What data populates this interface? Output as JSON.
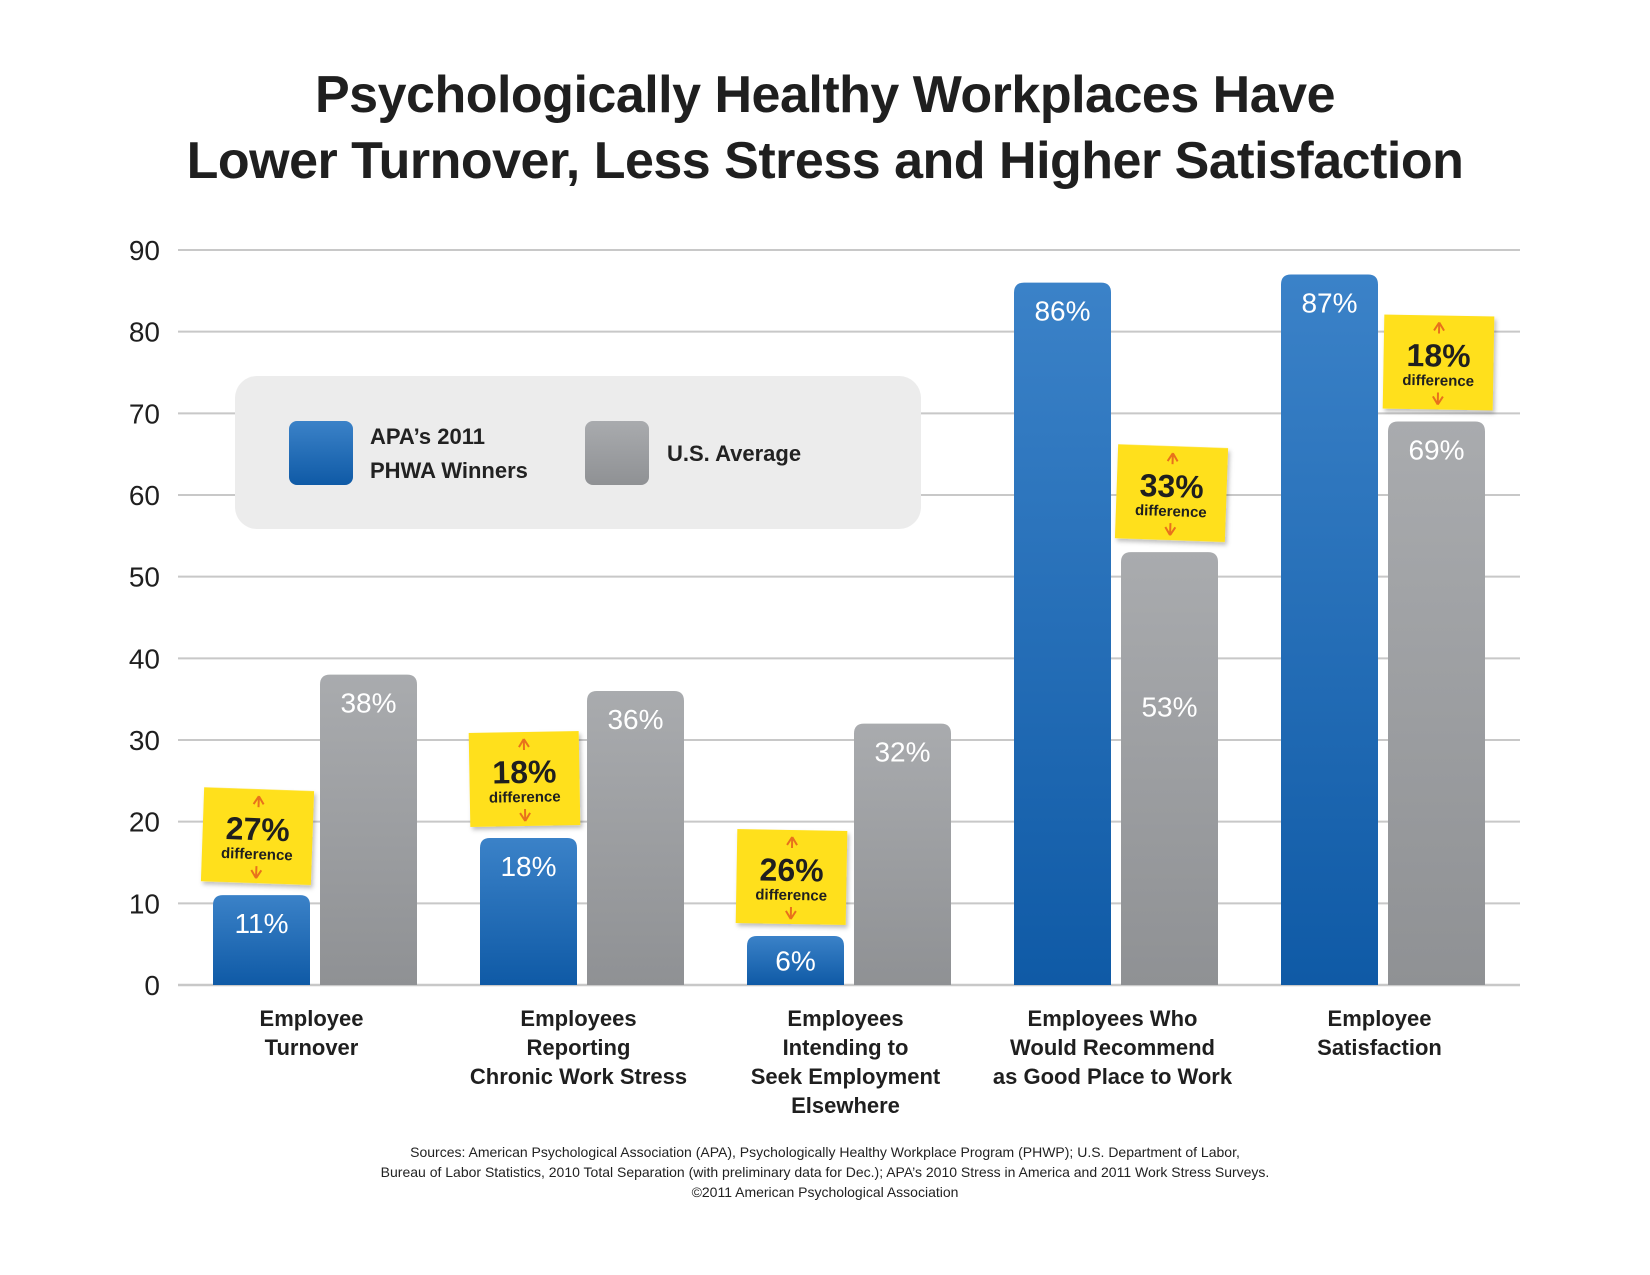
{
  "title_lines": [
    "Psychologically Healthy Workplaces Have",
    "Lower Turnover, Less Stress and Higher Satisfaction"
  ],
  "sources": {
    "line1": "Sources: American Psychological Association (APA), Psychologically Healthy Workplace Program (PHWP); U.S. Department of Labor,",
    "line2": "Bureau of Labor Statistics, 2010 Total Separation (with preliminary data for Dec.); APA’s 2010 Stress in America and 2011 Work Stress Surveys.",
    "line3": "©2011 American Psychological Association"
  },
  "colors": {
    "apa_bar": "#1f6bb5",
    "us_bar": "#a3a5a8",
    "note": "#ffe01a",
    "arrow": "#e8711c",
    "grid": "#c8c8c8",
    "legend_box": "#ececec"
  },
  "chart_data": {
    "type": "bar",
    "title": "Psychologically Healthy Workplaces Have Lower Turnover, Less Stress and Higher Satisfaction",
    "xlabel": "",
    "ylabel": "",
    "ylim": [
      0,
      90
    ],
    "yticks": [
      0,
      10,
      20,
      30,
      40,
      50,
      60,
      70,
      80,
      90
    ],
    "grid": true,
    "legend_position": "top-left",
    "categories": [
      [
        "Employee",
        "Turnover"
      ],
      [
        "Employees",
        "Reporting",
        "Chronic Work Stress"
      ],
      [
        "Employees",
        "Intending to",
        "Seek Employment",
        "Elsewhere"
      ],
      [
        "Employees Who",
        "Would Recommend",
        "as Good Place to Work"
      ],
      [
        "Employee",
        "Satisfaction"
      ]
    ],
    "series": [
      {
        "name": "APA’s 2011 PHWA Winners",
        "legend_lines": [
          "APA’s 2011",
          "PHWA Winners"
        ],
        "values": [
          11,
          18,
          6,
          86,
          87
        ],
        "labels": [
          "11%",
          "18%",
          "6%",
          "86%",
          "87%"
        ]
      },
      {
        "name": "U.S. Average",
        "legend_lines": [
          "U.S. Average"
        ],
        "values": [
          38,
          36,
          32,
          53,
          69
        ],
        "labels": [
          "38%",
          "36%",
          "32%",
          "53%",
          "69%"
        ]
      }
    ],
    "annotations": [
      {
        "category": 0,
        "text": "27%",
        "subtext": "difference"
      },
      {
        "category": 1,
        "text": "18%",
        "subtext": "difference"
      },
      {
        "category": 2,
        "text": "26%",
        "subtext": "difference"
      },
      {
        "category": 3,
        "text": "33%",
        "subtext": "difference"
      },
      {
        "category": 4,
        "text": "18%",
        "subtext": "difference"
      }
    ]
  }
}
